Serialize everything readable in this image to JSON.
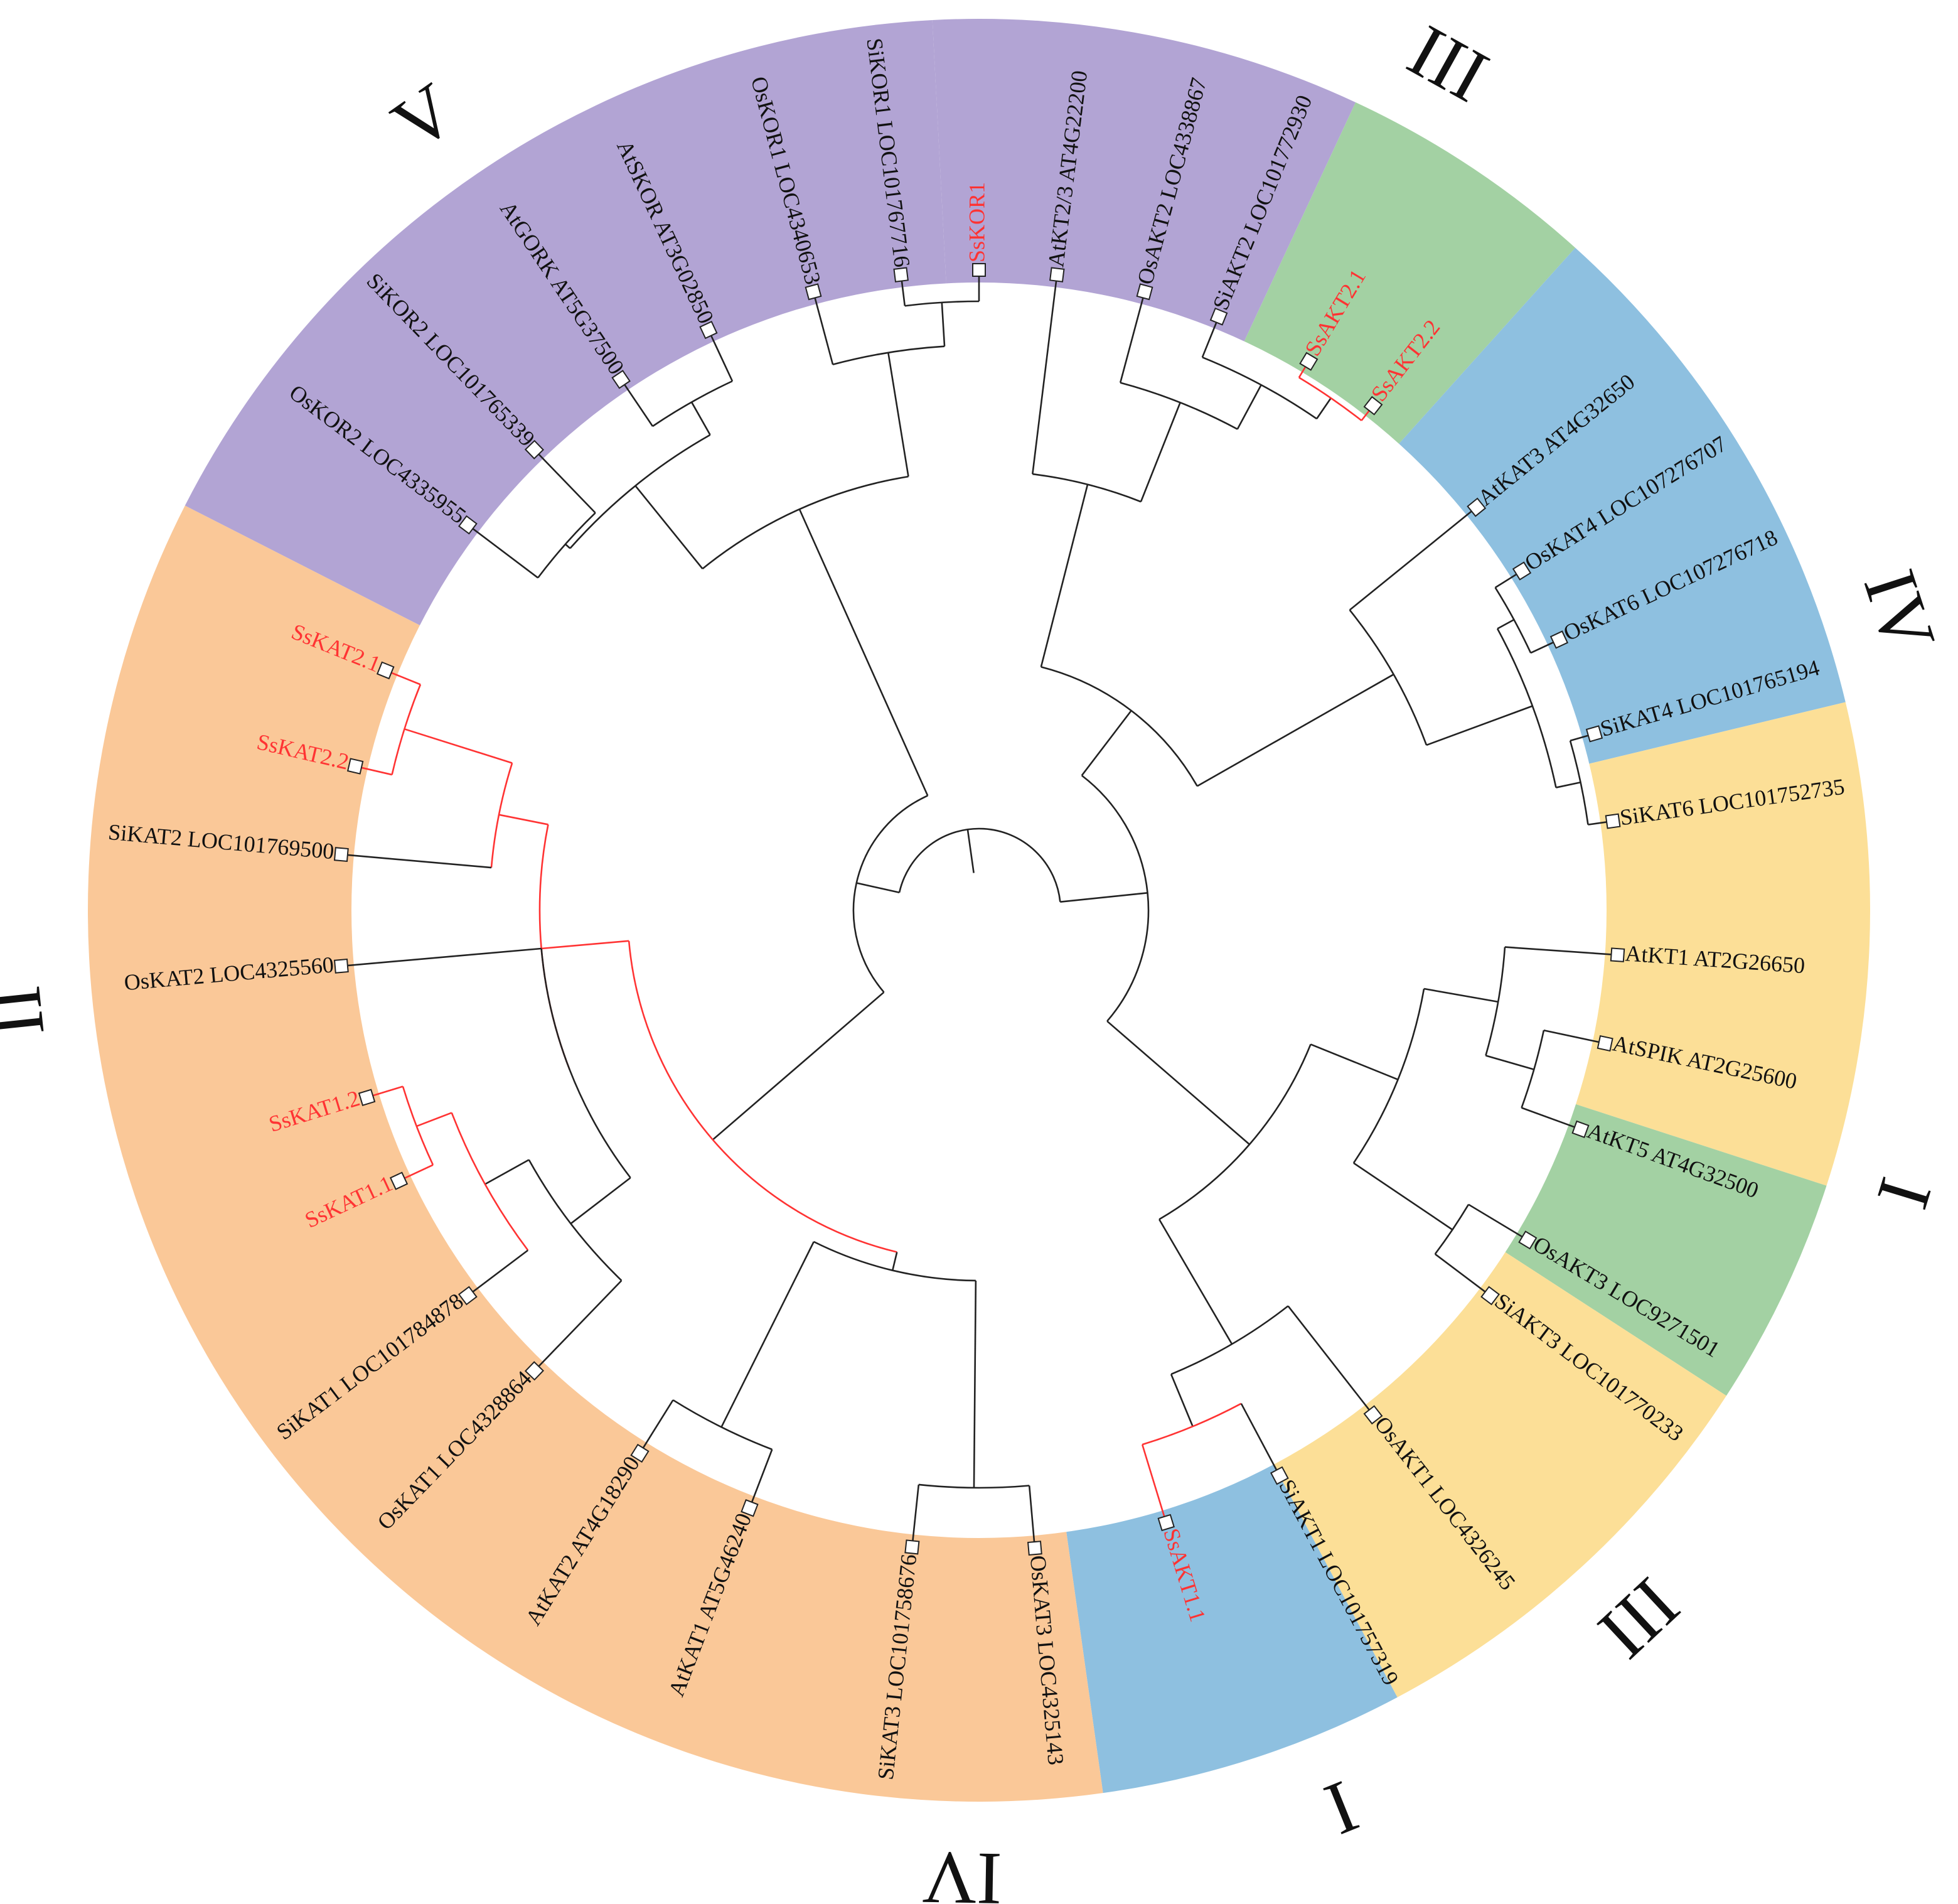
{
  "sectors": [
    {
      "clade": "V",
      "color": "#b2a4d4",
      "from": -3,
      "to": 25
    },
    {
      "clade": "III",
      "color": "#a3d1a3",
      "from": 25,
      "to": 42
    },
    {
      "clade": "IV",
      "color": "#8ec0e0",
      "from": 42,
      "to": 76.5
    },
    {
      "clade": "I",
      "color": "#fcdf97",
      "from": 76.5,
      "to": 108
    },
    {
      "clade": "III",
      "color": "#a3d1a3",
      "from": 108,
      "to": 123
    },
    {
      "clade": "I",
      "color": "#fcdf97",
      "from": 123,
      "to": 152
    },
    {
      "clade": "IV",
      "color": "#8ec0e0",
      "from": 152,
      "to": 172
    },
    {
      "clade": "II",
      "color": "#fac898",
      "from": 172,
      "to": 297
    },
    {
      "clade": "V",
      "color": "#b2a4d4",
      "from": 297,
      "to": 357
    }
  ],
  "clade_labels": [
    {
      "text": "III",
      "angle": 29
    },
    {
      "text": "IV",
      "angle": 72
    },
    {
      "text": "I",
      "angle": 107
    },
    {
      "text": "III",
      "angle": 137
    },
    {
      "text": "I",
      "angle": 158
    },
    {
      "text": "IV",
      "angle": 181
    },
    {
      "text": "II",
      "angle": 264
    },
    {
      "text": "V",
      "angle": 325
    }
  ],
  "leaves": [
    {
      "label": "SsKOR1",
      "angle": 0,
      "highlight": true
    },
    {
      "label": "AtKT2/3 AT4G22200",
      "angle": 7,
      "highlight": false
    },
    {
      "label": "OsAKT2 LOC4338867",
      "angle": 15,
      "highlight": false
    },
    {
      "label": "SiAKT2 LOC101772930",
      "angle": 22,
      "highlight": false
    },
    {
      "label": "SsAKT2.1",
      "angle": 31,
      "highlight": true
    },
    {
      "label": "SsAKT2.2",
      "angle": 38,
      "highlight": true
    },
    {
      "label": "AtKAT3 AT4G32650",
      "angle": 51,
      "highlight": false
    },
    {
      "label": "OsKAT4 LOC107276707",
      "angle": 58,
      "highlight": false
    },
    {
      "label": "OsKAT6 LOC107276718",
      "angle": 65,
      "highlight": false
    },
    {
      "label": "SiKAT4 LOC101765194",
      "angle": 74,
      "highlight": false
    },
    {
      "label": "SiKAT6 LOC101752735",
      "angle": 82,
      "highlight": false
    },
    {
      "label": "AtKT1 AT2G26650",
      "angle": 94,
      "highlight": false
    },
    {
      "label": "AtSPIK AT2G25600",
      "angle": 102,
      "highlight": false
    },
    {
      "label": "AtKT5 AT4G32500",
      "angle": 110,
      "highlight": false
    },
    {
      "label": "OsAKT3 LOC9271501",
      "angle": 121,
      "highlight": false
    },
    {
      "label": "SiAKT3 LOC101770233",
      "angle": 127,
      "highlight": false
    },
    {
      "label": "OsAKT1 LOC4326245",
      "angle": 142,
      "highlight": false
    },
    {
      "label": "SiAKT1 LOC101757319",
      "angle": 152,
      "highlight": false
    },
    {
      "label": "SsAKT1.1",
      "angle": 163,
      "highlight": true
    },
    {
      "label": "OsKAT3 LOC4325143",
      "angle": 175,
      "highlight": false
    },
    {
      "label": "SiKAT3 LOC101758676",
      "angle": 186,
      "highlight": false
    },
    {
      "label": "AtKAT1 AT5G46240",
      "angle": 201,
      "highlight": false
    },
    {
      "label": "AtKAT2 AT4G18290",
      "angle": 212,
      "highlight": false
    },
    {
      "label": "OsKAT1 LOC4328864",
      "angle": 224,
      "highlight": false
    },
    {
      "label": "SiKAT1 LOC101784878",
      "angle": 233,
      "highlight": false
    },
    {
      "label": "SsKAT1.1",
      "angle": 245,
      "highlight": true
    },
    {
      "label": "SsKAT1.2",
      "angle": 253,
      "highlight": true
    },
    {
      "label": "OsKAT2 LOC4325560",
      "angle": 265,
      "highlight": false
    },
    {
      "label": "SiKAT2 LOC101769500",
      "angle": 275,
      "highlight": false
    },
    {
      "label": "SsKAT2.2",
      "angle": 283,
      "highlight": true
    },
    {
      "label": "SsKAT2.1",
      "angle": 292,
      "highlight": true
    },
    {
      "label": "OsKOR2 LOC4335955",
      "angle": 307,
      "highlight": false
    },
    {
      "label": "SiKOR2 LOC101765339",
      "angle": 316,
      "highlight": false
    },
    {
      "label": "AtGORK AT5G37500",
      "angle": 326,
      "highlight": false
    },
    {
      "label": "AtSKOR AT3G02850",
      "angle": 335,
      "highlight": false
    },
    {
      "label": "OsKOR1 LOC4340653",
      "angle": 345,
      "highlight": false
    },
    {
      "label": "SiKOR1 LOC101767716",
      "angle": 353,
      "highlight": false
    }
  ],
  "colors": {
    "highlight": "#ff3333",
    "branch": "#222222",
    "text": "#111111"
  }
}
